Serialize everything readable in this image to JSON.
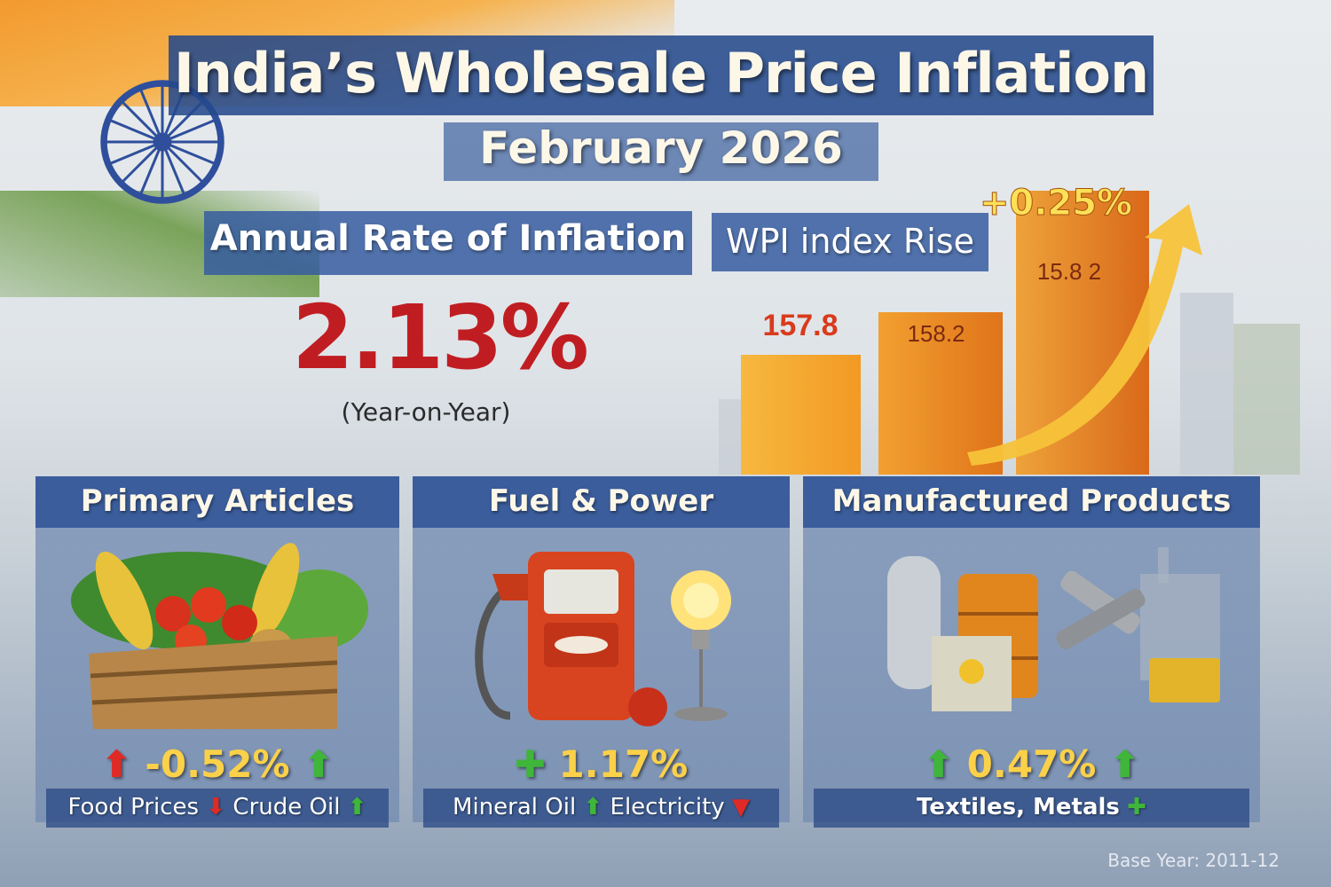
{
  "header": {
    "title": "India’s Wholesale Price Inflation",
    "subtitle": "February 2026"
  },
  "annual": {
    "label": "Annual Rate of Inflation",
    "value": "2.13%",
    "note": "(Year-on-Year)"
  },
  "wpi": {
    "label": "WPI index Rise",
    "change": "+0.25%",
    "bar_labels": [
      "157.8",
      "158.2",
      "15.8  2"
    ],
    "trend": "up"
  },
  "panels": [
    {
      "title": "Primary Articles",
      "value": "-0.52%",
      "value_arrows": [
        "up-red",
        "up-green"
      ],
      "foot": [
        {
          "text": "Food Prices",
          "arrow": "down"
        },
        {
          "text": "Crude Oil",
          "arrow": "up"
        }
      ],
      "art": "vegetable-crate"
    },
    {
      "title": "Fuel & Power",
      "value": "1.17%",
      "value_arrows": [
        "plus-green"
      ],
      "foot": [
        {
          "text": "Mineral Oil",
          "arrow": "up"
        },
        {
          "text": "Electricity",
          "arrow": "down"
        }
      ],
      "art": "fuel-pump-and-bulb"
    },
    {
      "title": "Manufactured Products",
      "value": "0.47%",
      "value_arrows": [
        "up-green",
        "up-green"
      ],
      "foot": [
        {
          "text": "Textiles, Metals",
          "arrow": "plus"
        }
      ],
      "art": "industrial-goods"
    }
  ],
  "footer": {
    "base_year": "Base Year: 2011-12"
  },
  "colors": {
    "banner_blue": "#2e5296",
    "inflation_red": "#c01d22",
    "value_yellow": "#fbd14a",
    "bar_orange": "#f09a2a",
    "arrow_green": "#3fb63a",
    "arrow_red": "#e02a25"
  }
}
